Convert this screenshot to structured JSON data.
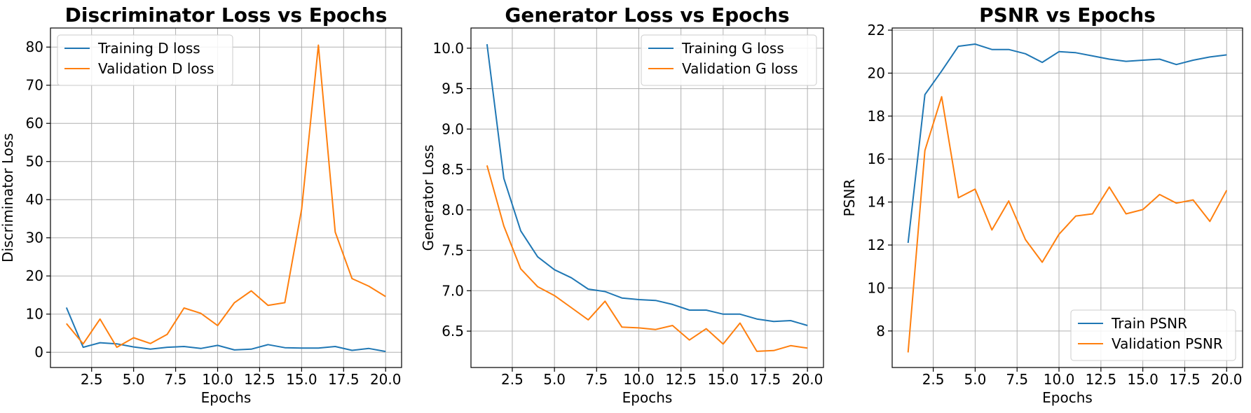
{
  "colors": {
    "series1": "#1f77b4",
    "series2": "#ff7f0e",
    "grid": "#b0b0b0"
  },
  "chart_data": [
    {
      "type": "line",
      "title": "Discriminator Loss vs Epochs",
      "xlabel": "Epochs",
      "ylabel": "Discriminator Loss",
      "xlim": [
        0.05,
        20.95
      ],
      "ylim": [
        -4,
        85
      ],
      "xticks": [
        2.5,
        5.0,
        7.5,
        10.0,
        12.5,
        15.0,
        17.5,
        20.0
      ],
      "yticks": [
        0,
        10,
        20,
        30,
        40,
        50,
        60,
        70,
        80
      ],
      "xtick_labels": [
        "2.5",
        "5.0",
        "7.5",
        "10.0",
        "12.5",
        "15.0",
        "17.5",
        "20.0"
      ],
      "ytick_labels": [
        "0",
        "10",
        "20",
        "30",
        "40",
        "50",
        "60",
        "70",
        "80"
      ],
      "grid": true,
      "legend_position": "top-left",
      "x": [
        1,
        2,
        3,
        4,
        5,
        6,
        7,
        8,
        9,
        10,
        11,
        12,
        13,
        14,
        15,
        16,
        17,
        18,
        19,
        20
      ],
      "series": [
        {
          "name": "Training D loss",
          "color": "#1f77b4",
          "values": [
            11.7,
            1.3,
            2.5,
            2.2,
            1.4,
            0.8,
            1.3,
            1.5,
            1.0,
            1.8,
            0.6,
            0.8,
            2.0,
            1.2,
            1.1,
            1.1,
            1.5,
            0.5,
            1.0,
            0.2
          ]
        },
        {
          "name": "Validation D loss",
          "color": "#ff7f0e",
          "values": [
            7.5,
            2.2,
            8.7,
            1.3,
            3.8,
            2.3,
            4.7,
            11.6,
            10.2,
            7.0,
            13.0,
            16.1,
            12.3,
            13.0,
            37.5,
            80.5,
            31.5,
            19.3,
            17.3,
            14.6
          ]
        }
      ]
    },
    {
      "type": "line",
      "title": "Generator Loss vs Epochs",
      "xlabel": "Epochs",
      "ylabel": "Generator Loss",
      "xlim": [
        0.05,
        20.95
      ],
      "ylim": [
        6.05,
        10.25
      ],
      "xticks": [
        2.5,
        5.0,
        7.5,
        10.0,
        12.5,
        15.0,
        17.5,
        20.0
      ],
      "yticks": [
        6.5,
        7.0,
        7.5,
        8.0,
        8.5,
        9.0,
        9.5,
        10.0
      ],
      "xtick_labels": [
        "2.5",
        "5.0",
        "7.5",
        "10.0",
        "12.5",
        "15.0",
        "17.5",
        "20.0"
      ],
      "ytick_labels": [
        "6.5",
        "7.0",
        "7.5",
        "8.0",
        "8.5",
        "9.0",
        "9.5",
        "10.0"
      ],
      "grid": true,
      "legend_position": "top-right",
      "x": [
        1,
        2,
        3,
        4,
        5,
        6,
        7,
        8,
        9,
        10,
        11,
        12,
        13,
        14,
        15,
        16,
        17,
        18,
        19,
        20
      ],
      "series": [
        {
          "name": "Training G loss",
          "color": "#1f77b4",
          "values": [
            10.05,
            8.39,
            7.74,
            7.42,
            7.26,
            7.16,
            7.02,
            6.99,
            6.91,
            6.89,
            6.88,
            6.83,
            6.76,
            6.76,
            6.71,
            6.71,
            6.65,
            6.62,
            6.63,
            6.57
          ]
        },
        {
          "name": "Validation G loss",
          "color": "#ff7f0e",
          "values": [
            8.55,
            7.8,
            7.27,
            7.05,
            6.94,
            6.79,
            6.64,
            6.87,
            6.55,
            6.54,
            6.52,
            6.57,
            6.39,
            6.53,
            6.34,
            6.6,
            6.25,
            6.26,
            6.32,
            6.29
          ]
        }
      ]
    },
    {
      "type": "line",
      "title": "PSNR vs Epochs",
      "xlabel": "Epochs",
      "ylabel": "PSNR",
      "xlim": [
        0.05,
        20.95
      ],
      "ylim": [
        6.3,
        22.1
      ],
      "xticks": [
        2.5,
        5.0,
        7.5,
        10.0,
        12.5,
        15.0,
        17.5,
        20.0
      ],
      "yticks": [
        8,
        10,
        12,
        14,
        16,
        18,
        20,
        22
      ],
      "xtick_labels": [
        "2.5",
        "5.0",
        "7.5",
        "10.0",
        "12.5",
        "15.0",
        "17.5",
        "20.0"
      ],
      "ytick_labels": [
        "8",
        "10",
        "12",
        "14",
        "16",
        "18",
        "20",
        "22"
      ],
      "grid": true,
      "legend_position": "bottom-right",
      "x": [
        1,
        2,
        3,
        4,
        5,
        6,
        7,
        8,
        9,
        10,
        11,
        12,
        13,
        14,
        15,
        16,
        17,
        18,
        19,
        20
      ],
      "series": [
        {
          "name": "Train PSNR",
          "color": "#1f77b4",
          "values": [
            12.1,
            19.0,
            20.1,
            21.25,
            21.35,
            21.1,
            21.1,
            20.9,
            20.5,
            21.0,
            20.95,
            20.8,
            20.65,
            20.55,
            20.6,
            20.65,
            20.4,
            20.6,
            20.75,
            20.85
          ]
        },
        {
          "name": "Validation PSNR",
          "color": "#ff7f0e",
          "values": [
            7.0,
            16.4,
            18.9,
            14.2,
            14.6,
            12.7,
            14.05,
            12.25,
            11.2,
            12.5,
            13.35,
            13.45,
            14.7,
            13.45,
            13.65,
            14.35,
            13.95,
            14.1,
            13.1,
            14.55
          ]
        }
      ]
    }
  ]
}
